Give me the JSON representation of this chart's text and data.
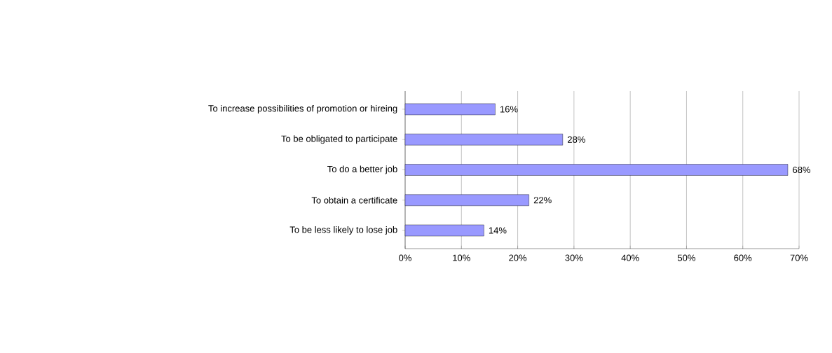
{
  "chart_data": {
    "type": "bar",
    "orientation": "horizontal",
    "categories": [
      "To increase possibilities of promotion or hireing",
      "To be obligated to participate",
      "To do a better job",
      "To obtain a certificate",
      "To be less likely to lose job"
    ],
    "values": [
      16,
      28,
      68,
      22,
      14
    ],
    "value_labels": [
      "16%",
      "28%",
      "68%",
      "22%",
      "14%"
    ],
    "color": "#9999ff",
    "xlim": [
      0,
      70
    ],
    "xticks": [
      {
        "value": 0,
        "label": "0%"
      },
      {
        "value": 10,
        "label": "10%"
      },
      {
        "value": 20,
        "label": "20%"
      },
      {
        "value": 30,
        "label": "30%"
      },
      {
        "value": 40,
        "label": "40%"
      },
      {
        "value": 50,
        "label": "50%"
      },
      {
        "value": 60,
        "label": "60%"
      },
      {
        "value": 70,
        "label": "70%"
      }
    ],
    "grid": "x"
  }
}
